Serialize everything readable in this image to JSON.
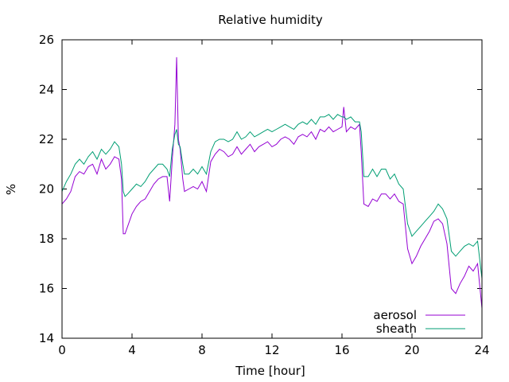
{
  "chart_data": {
    "type": "line",
    "title": "Relative humidity",
    "xlabel": "Time [hour]",
    "ylabel": "%",
    "xlim": [
      0,
      24
    ],
    "ylim": [
      14,
      26
    ],
    "xticks": [
      0,
      4,
      8,
      12,
      16,
      20,
      24
    ],
    "yticks": [
      14,
      16,
      18,
      20,
      22,
      24,
      26
    ],
    "xtick_labels": [
      "0",
      "4",
      "8",
      "12",
      "16",
      "20",
      "24"
    ],
    "ytick_labels": [
      "14",
      "16",
      "18",
      "20",
      "22",
      "24",
      "26"
    ],
    "grid": false,
    "legend_position": "bottom-right",
    "series": [
      {
        "name": "aerosol",
        "color": "#9400d3",
        "x": [
          0,
          0.25,
          0.5,
          0.75,
          1,
          1.25,
          1.5,
          1.75,
          2,
          2.25,
          2.5,
          2.75,
          3,
          3.25,
          3.4,
          3.5,
          3.6,
          3.75,
          4,
          4.25,
          4.5,
          4.75,
          5,
          5.25,
          5.5,
          5.75,
          6,
          6.15,
          6.3,
          6.45,
          6.55,
          6.65,
          6.75,
          6.9,
          7,
          7.25,
          7.5,
          7.75,
          8,
          8.25,
          8.5,
          8.75,
          9,
          9.25,
          9.5,
          9.75,
          10,
          10.25,
          10.5,
          10.75,
          11,
          11.25,
          11.5,
          11.75,
          12,
          12.25,
          12.5,
          12.75,
          13,
          13.25,
          13.5,
          13.75,
          14,
          14.25,
          14.5,
          14.75,
          15,
          15.25,
          15.5,
          15.75,
          16,
          16.1,
          16.25,
          16.5,
          16.75,
          17,
          17.1,
          17.25,
          17.5,
          17.75,
          18,
          18.25,
          18.5,
          18.75,
          19,
          19.25,
          19.5,
          19.75,
          20,
          20.25,
          20.5,
          20.75,
          21,
          21.25,
          21.5,
          21.75,
          22,
          22.25,
          22.5,
          22.75,
          23,
          23.25,
          23.5,
          23.75,
          24
        ],
        "values": [
          19.4,
          19.6,
          19.9,
          20.5,
          20.7,
          20.6,
          20.9,
          21.0,
          20.6,
          21.2,
          20.8,
          21.0,
          21.3,
          21.2,
          20.4,
          18.2,
          18.2,
          18.5,
          19.0,
          19.3,
          19.5,
          19.6,
          19.9,
          20.2,
          20.4,
          20.5,
          20.5,
          19.5,
          21.2,
          22.6,
          25.3,
          22.0,
          21.6,
          20.4,
          19.9,
          20.0,
          20.1,
          20.0,
          20.3,
          19.9,
          21.1,
          21.4,
          21.6,
          21.5,
          21.3,
          21.4,
          21.7,
          21.4,
          21.6,
          21.8,
          21.5,
          21.7,
          21.8,
          21.9,
          21.7,
          21.8,
          22.0,
          22.1,
          22.0,
          21.8,
          22.1,
          22.2,
          22.1,
          22.3,
          22.0,
          22.4,
          22.3,
          22.5,
          22.3,
          22.4,
          22.5,
          23.3,
          22.3,
          22.5,
          22.4,
          22.6,
          21.5,
          19.4,
          19.3,
          19.6,
          19.5,
          19.8,
          19.8,
          19.6,
          19.8,
          19.5,
          19.4,
          17.6,
          17.0,
          17.3,
          17.7,
          18.0,
          18.3,
          18.7,
          18.8,
          18.6,
          17.8,
          16.0,
          15.8,
          16.2,
          16.5,
          16.9,
          16.7,
          17.0,
          15.2
        ]
      },
      {
        "name": "sheath",
        "color": "#009e73",
        "x": [
          0,
          0.25,
          0.5,
          0.75,
          1,
          1.25,
          1.5,
          1.75,
          2,
          2.25,
          2.5,
          2.75,
          3,
          3.25,
          3.4,
          3.5,
          3.6,
          3.75,
          4,
          4.25,
          4.5,
          4.75,
          5,
          5.25,
          5.5,
          5.75,
          6,
          6.15,
          6.3,
          6.45,
          6.55,
          6.65,
          6.75,
          6.9,
          7,
          7.25,
          7.5,
          7.75,
          8,
          8.25,
          8.5,
          8.75,
          9,
          9.25,
          9.5,
          9.75,
          10,
          10.25,
          10.5,
          10.75,
          11,
          11.25,
          11.5,
          11.75,
          12,
          12.25,
          12.5,
          12.75,
          13,
          13.25,
          13.5,
          13.75,
          14,
          14.25,
          14.5,
          14.75,
          15,
          15.25,
          15.5,
          15.75,
          16,
          16.1,
          16.25,
          16.5,
          16.75,
          17,
          17.1,
          17.25,
          17.5,
          17.75,
          18,
          18.25,
          18.5,
          18.75,
          19,
          19.25,
          19.5,
          19.75,
          20,
          20.25,
          20.5,
          20.75,
          21,
          21.25,
          21.5,
          21.75,
          22,
          22.25,
          22.5,
          22.75,
          23,
          23.25,
          23.5,
          23.75,
          24
        ],
        "values": [
          19.9,
          20.3,
          20.6,
          21.0,
          21.2,
          21.0,
          21.3,
          21.5,
          21.2,
          21.6,
          21.4,
          21.6,
          21.9,
          21.7,
          21.0,
          19.9,
          19.7,
          19.8,
          20.0,
          20.2,
          20.1,
          20.3,
          20.6,
          20.8,
          21.0,
          21.0,
          20.8,
          20.5,
          21.6,
          22.2,
          22.4,
          21.8,
          21.7,
          21.0,
          20.6,
          20.6,
          20.8,
          20.6,
          20.9,
          20.6,
          21.5,
          21.9,
          22.0,
          22.0,
          21.9,
          22.0,
          22.3,
          22.0,
          22.1,
          22.3,
          22.1,
          22.2,
          22.3,
          22.4,
          22.3,
          22.4,
          22.5,
          22.6,
          22.5,
          22.4,
          22.6,
          22.7,
          22.6,
          22.8,
          22.6,
          22.9,
          22.9,
          23.0,
          22.8,
          23.0,
          22.9,
          22.9,
          22.8,
          22.9,
          22.7,
          22.7,
          22.3,
          20.5,
          20.5,
          20.8,
          20.5,
          20.8,
          20.8,
          20.4,
          20.6,
          20.2,
          20.0,
          18.6,
          18.1,
          18.3,
          18.5,
          18.7,
          18.9,
          19.1,
          19.4,
          19.2,
          18.8,
          17.5,
          17.3,
          17.5,
          17.7,
          17.8,
          17.7,
          17.9,
          16.4
        ]
      }
    ]
  }
}
